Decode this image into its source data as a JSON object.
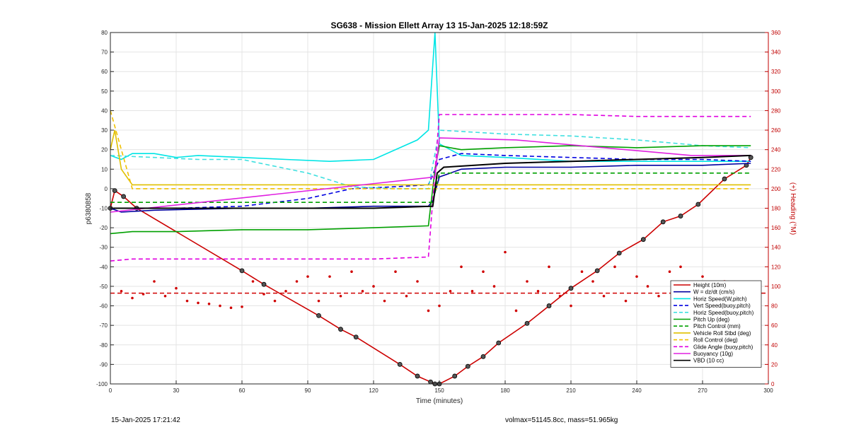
{
  "chart_data": {
    "type": "line",
    "title": "SG638 - Mission Ellett Array 13 15-Jan-2025 12:18:59Z",
    "xlabel": "Time (minutes)",
    "ylabel": "p6380858",
    "ylabel_right": "(+) Heading (°M)",
    "xlim": [
      0,
      300
    ],
    "ylim": [
      -100,
      80
    ],
    "ylim_right": [
      0,
      360
    ],
    "x_ticks": [
      0,
      30,
      60,
      90,
      120,
      150,
      180,
      210,
      240,
      270,
      300
    ],
    "y_ticks": [
      -100,
      -90,
      -80,
      -70,
      -60,
      -50,
      -40,
      -30,
      -20,
      -10,
      0,
      10,
      20,
      30,
      40,
      50,
      60,
      70,
      80
    ],
    "y_ticks_right": [
      0,
      20,
      40,
      60,
      80,
      100,
      120,
      140,
      160,
      180,
      200,
      220,
      240,
      260,
      280,
      300,
      320,
      340,
      360
    ],
    "grid": true,
    "legend_position": "bottom-right",
    "series": [
      {
        "name": "Height (10m)",
        "color": "#cc0000",
        "style": "solid-marker",
        "x": [
          0,
          2,
          6,
          12,
          60,
          70,
          95,
          105,
          112,
          132,
          140,
          146,
          148,
          150,
          157,
          163,
          170,
          177,
          190,
          200,
          210,
          222,
          232,
          243,
          252,
          260,
          268,
          280,
          290,
          292
        ],
        "y": [
          -10,
          -1,
          -4,
          -10,
          -42,
          -49,
          -65,
          -72,
          -76,
          -90,
          -96,
          -99,
          -100,
          -100,
          -96,
          -91,
          -86,
          -79,
          -69,
          -60,
          -51,
          -42,
          -33,
          -26,
          -17,
          -14,
          -8,
          5,
          12,
          16
        ]
      },
      {
        "name": "W = dz/dt (cm/s)",
        "color": "#0000a0",
        "style": "solid",
        "x": [
          0,
          5,
          20,
          60,
          90,
          120,
          145,
          147,
          150,
          160,
          180,
          210,
          240,
          270,
          292
        ],
        "y": [
          -10,
          -12,
          -11,
          -10,
          -10,
          -9,
          -9,
          -6,
          6,
          10,
          11,
          11,
          12,
          12,
          13
        ]
      },
      {
        "name": "Horiz Speed(W,pitch)",
        "color": "#00e5e5",
        "style": "solid",
        "x": [
          0,
          5,
          10,
          20,
          30,
          40,
          60,
          80,
          100,
          120,
          140,
          145,
          148,
          150,
          160,
          180,
          210,
          240,
          270,
          292
        ],
        "y": [
          17,
          15,
          18,
          18,
          16,
          17,
          16,
          15,
          14,
          15,
          25,
          30,
          80,
          23,
          17,
          16,
          14,
          14,
          14,
          14
        ]
      },
      {
        "name": "Vert Speed(buoy,pitch)",
        "color": "#0000e0",
        "style": "dashed",
        "x": [
          0,
          30,
          60,
          90,
          110,
          130,
          145,
          150,
          160,
          180,
          210,
          240,
          270,
          292
        ],
        "y": [
          -10,
          -10,
          -9,
          -5,
          0,
          1,
          2,
          15,
          18,
          17,
          16,
          15,
          15,
          14
        ]
      },
      {
        "name": "Horiz Speed(buoy,pitch)",
        "color": "#40e0e0",
        "style": "dashed",
        "x": [
          0,
          20,
          40,
          60,
          90,
          110,
          130,
          145,
          150,
          180,
          210,
          240,
          270,
          292
        ],
        "y": [
          17,
          16,
          15,
          15,
          8,
          1,
          0,
          0,
          30,
          28,
          27,
          25,
          22,
          21
        ]
      },
      {
        "name": "Pitch Up (deg)",
        "color": "#00a000",
        "style": "solid",
        "x": [
          0,
          10,
          30,
          60,
          90,
          120,
          145,
          148,
          150,
          160,
          180,
          210,
          240,
          270,
          292
        ],
        "y": [
          -23,
          -22,
          -22,
          -21,
          -21,
          -20,
          -19,
          10,
          22,
          20,
          21,
          22,
          21,
          22,
          22
        ]
      },
      {
        "name": "Pitch Control (mm)",
        "color": "#00a000",
        "style": "dashed",
        "x": [
          0,
          10,
          60,
          120,
          147,
          150,
          180,
          210,
          240,
          270,
          292
        ],
        "y": [
          -7,
          -7,
          -7,
          -7,
          -7,
          8,
          8,
          8,
          8,
          8,
          8
        ]
      },
      {
        "name": "Vehicle Roll Stbd (deg)",
        "color": "#e0c000",
        "style": "solid",
        "x": [
          0,
          2,
          5,
          10,
          30,
          60,
          90,
          120,
          145,
          148,
          150,
          180,
          210,
          240,
          270,
          292
        ],
        "y": [
          20,
          30,
          10,
          2,
          2,
          2,
          2,
          2,
          2,
          2,
          2,
          2,
          2,
          2,
          2,
          2
        ]
      },
      {
        "name": "Roll Control (deg)",
        "color": "#f0c000",
        "style": "dashed",
        "x": [
          0,
          10,
          30,
          60,
          90,
          120,
          145,
          150,
          180,
          210,
          240,
          270,
          292
        ],
        "y": [
          40,
          0,
          0,
          0,
          0,
          0,
          0,
          0,
          0,
          0,
          0,
          0,
          0
        ]
      },
      {
        "name": "Glide Angle (buoy,pitch)",
        "color": "#e000e0",
        "style": "dashed",
        "x": [
          0,
          10,
          30,
          60,
          90,
          120,
          145,
          150,
          180,
          210,
          240,
          270,
          292
        ],
        "y": [
          -37,
          -36,
          -36,
          -36,
          -36,
          -36,
          -35,
          38,
          38,
          38,
          37,
          37,
          37
        ]
      },
      {
        "name": "Buoyancy (10g)",
        "color": "#e020e0",
        "style": "solid",
        "x": [
          0,
          148,
          150,
          185,
          265,
          292
        ],
        "y": [
          -12,
          6,
          26,
          25,
          17,
          17
        ]
      },
      {
        "name": "VBD (10 cc)",
        "color": "#000000",
        "style": "solid",
        "x": [
          0,
          10,
          60,
          120,
          147,
          149,
          152,
          180,
          210,
          240,
          270,
          292
        ],
        "y": [
          -10,
          -10,
          -10,
          -10,
          -9,
          8,
          11,
          13,
          14,
          15,
          16,
          17
        ]
      }
    ],
    "heading_reference": 93,
    "heading_scatter": {
      "name": "Heading",
      "color": "#d00000",
      "x": [
        5,
        10,
        15,
        20,
        25,
        30,
        35,
        40,
        45,
        50,
        55,
        60,
        65,
        70,
        75,
        80,
        85,
        90,
        95,
        100,
        105,
        110,
        115,
        120,
        125,
        130,
        135,
        140,
        145,
        150,
        155,
        160,
        165,
        170,
        175,
        180,
        185,
        190,
        195,
        200,
        205,
        210,
        215,
        220,
        225,
        230,
        235,
        240,
        245,
        250,
        255,
        260,
        265,
        270,
        275,
        280,
        285,
        290
      ],
      "y": [
        95,
        88,
        92,
        105,
        90,
        98,
        85,
        83,
        82,
        80,
        78,
        79,
        105,
        92,
        85,
        95,
        105,
        110,
        85,
        110,
        90,
        115,
        95,
        100,
        85,
        115,
        90,
        105,
        75,
        80,
        95,
        120,
        95,
        115,
        100,
        135,
        75,
        105,
        95,
        120,
        90,
        80,
        115,
        105,
        90,
        120,
        85,
        110,
        100,
        90,
        115,
        120,
        95,
        110,
        80,
        105,
        95,
        100
      ]
    },
    "legend": [
      "Height (10m)",
      "W = dz/dt (cm/s)",
      "Horiz Speed(W,pitch)",
      "Vert Speed(buoy,pitch)",
      "Horiz Speed(buoy,pitch)",
      "Pitch Up (deg)",
      "Pitch Control (mm)",
      "Vehicle Roll Stbd (deg)",
      "Roll Control (deg)",
      "Glide Angle (buoy,pitch)",
      "Buoyancy (10g)",
      "VBD (10 cc)"
    ]
  },
  "footer": {
    "timestamp": "15-Jan-2025 17:21:42",
    "stats": "volmax=51145.8cc, mass=51.965kg"
  }
}
